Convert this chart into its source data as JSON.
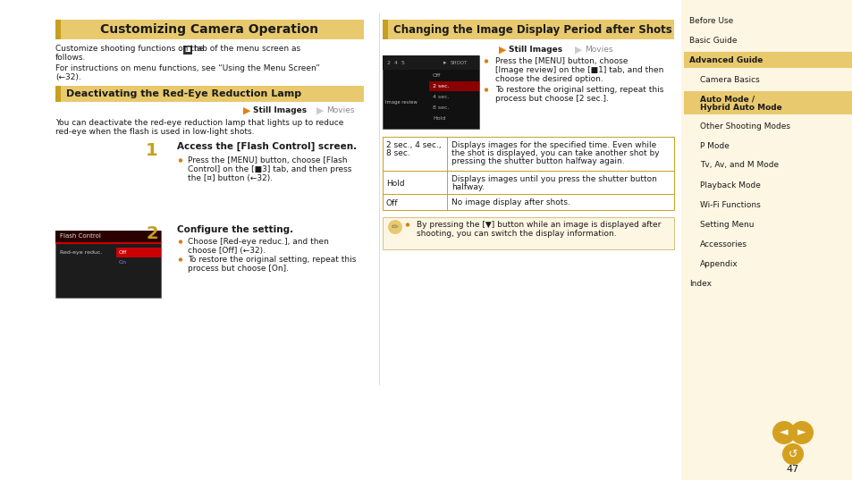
{
  "page_bg": "#ffffff",
  "nav_bg": "#fdf6e3",
  "title_bg": "#e8c96e",
  "title_left_accent": "#c8a020",
  "main_title": "Customizing Camera Operation",
  "sub_title": "Deactivating the Red-Eye Reduction Lamp",
  "right_title": "Changing the Image Display Period after Shots",
  "table_row1_key": "2 sec., 4 sec.,\n8 sec.",
  "table_row1_val": "Displays images for the specified time. Even while\nthe shot is displayed, you can take another shot by\npressing the shutter button halfway again.",
  "table_row2_key": "Hold",
  "table_row2_val": "Displays images until you press the shutter button\nhalfway.",
  "table_row3_key": "Off",
  "table_row3_val": "No image display after shots.",
  "nav_items": [
    {
      "text": "Before Use",
      "level": 0,
      "active": false
    },
    {
      "text": "Basic Guide",
      "level": 0,
      "active": false
    },
    {
      "text": "Advanced Guide",
      "level": 0,
      "active": true,
      "highlight": true
    },
    {
      "text": "Camera Basics",
      "level": 1,
      "active": false
    },
    {
      "text": "Auto Mode /\nHybrid Auto Mode",
      "level": 1,
      "active": true,
      "highlight": true
    },
    {
      "text": "Other Shooting Modes",
      "level": 1,
      "active": false
    },
    {
      "text": "P Mode",
      "level": 1,
      "active": false
    },
    {
      "text": "Tv, Av, and M Mode",
      "level": 1,
      "active": false
    },
    {
      "text": "Playback Mode",
      "level": 1,
      "active": false
    },
    {
      "text": "Wi-Fi Functions",
      "level": 1,
      "active": false
    },
    {
      "text": "Setting Menu",
      "level": 1,
      "active": false
    },
    {
      "text": "Accessories",
      "level": 1,
      "active": false
    },
    {
      "text": "Appendix",
      "level": 1,
      "active": false
    },
    {
      "text": "Index",
      "level": 0,
      "active": false
    }
  ],
  "page_number": "47",
  "colors": {
    "nav_bg_light": "#fdf6e3",
    "nav_bg_active": "#e8c96e",
    "nav_text": "#1a1a1a",
    "table_border": "#c8a020",
    "bullet_orange": "#d4820a",
    "step_num_color": "#c8a020",
    "still_arrow": "#e08010",
    "movies_arrow": "#cccccc",
    "text_dark": "#1a1a1a",
    "text_gray": "#888888",
    "note_bg": "#fdf6e3",
    "note_border": "#d4c080"
  }
}
